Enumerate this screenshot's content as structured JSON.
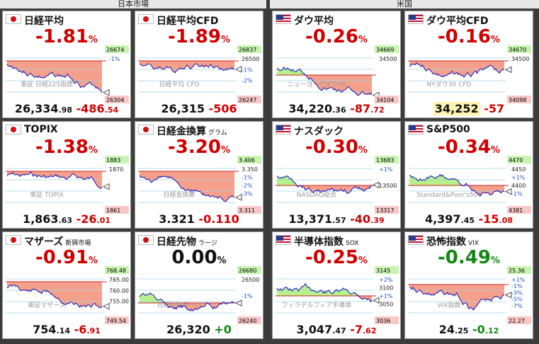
{
  "sections": {
    "japan": "日本市場",
    "us": "米国"
  },
  "panels": [
    {
      "id": "nikkei",
      "flag": "jp",
      "name": "日経平均",
      "sub": "",
      "pct": "-1.81",
      "pct_unit": "%",
      "dir": "neg",
      "price_main": "26,334",
      "price_dec": ".98",
      "chg_main": "-486",
      "chg_dec": ".54",
      "highlight": false,
      "axis": {
        "high": "26674",
        "low": "26304",
        "pct_ticks": [
          "-1%"
        ]
      },
      "watermark": "東証 日経225指標",
      "fill": "red",
      "flat": false
    },
    {
      "id": "nikkei_cfd",
      "flag": "jp",
      "name": "日経平均CFD",
      "sub": "",
      "pct": "-1.89",
      "pct_unit": "%",
      "dir": "neg",
      "price_main": "26,315",
      "price_dec": "",
      "chg_main": "-506",
      "chg_dec": "",
      "highlight": false,
      "axis": {
        "high": "26837",
        "low": "26247",
        "pct_ticks": [
          "26500",
          "-1%",
          "-2%"
        ]
      },
      "watermark": "日経平均 CFD",
      "fill": "red",
      "flat": false
    },
    {
      "id": "dow",
      "flag": "us",
      "name": "ダウ平均",
      "sub": "",
      "pct": "-0.26",
      "pct_unit": "%",
      "dir": "neg",
      "price_main": "34,220",
      "price_dec": ".36",
      "chg_main": "-87",
      "chg_dec": ".72",
      "highlight": false,
      "axis": {
        "high": "34669",
        "low": "34104",
        "pct_ticks": [
          "34500"
        ]
      },
      "watermark": "ニューヨークダウ30",
      "fill": "green-red",
      "flat": false
    },
    {
      "id": "dow_cfd",
      "flag": "us",
      "name": "ダウ平均CFD",
      "sub": "",
      "pct": "-0.16",
      "pct_unit": "%",
      "dir": "neg",
      "price_main": "34,252",
      "price_dec": "",
      "chg_main": "-57",
      "chg_dec": "",
      "highlight": true,
      "axis": {
        "high": "34670",
        "low": "34098",
        "pct_ticks": [
          "34500"
        ]
      },
      "watermark": "NYダウ30 CFD",
      "fill": "red",
      "flat": false
    },
    {
      "id": "topix",
      "flag": "jp",
      "name": "TOPIX",
      "sub": "",
      "pct": "-1.38",
      "pct_unit": "%",
      "dir": "neg",
      "price_main": "1,863",
      "price_dec": ".63",
      "chg_main": "-26",
      "chg_dec": ".01",
      "highlight": false,
      "axis": {
        "high": "1883",
        "low": "1861",
        "pct_ticks": [
          "1870"
        ]
      },
      "watermark": "東証 TOPIX",
      "fill": "red",
      "flat": false
    },
    {
      "id": "gold",
      "flag": "jp",
      "name": "日経金換算",
      "sub": "グラム",
      "pct": "-3.20",
      "pct_unit": "%",
      "dir": "neg",
      "price_main": "3.321",
      "price_dec": "",
      "chg_main": "-0.110",
      "chg_dec": "",
      "highlight": false,
      "axis": {
        "high": "3.406",
        "low": "3.311",
        "pct_ticks": [
          "3.350",
          "-1%",
          "-2%",
          "-3%"
        ]
      },
      "watermark": "日経金換算",
      "fill": "red",
      "flat": false
    },
    {
      "id": "nasdaq",
      "flag": "us",
      "name": "ナスダック",
      "sub": "",
      "pct": "-0.30",
      "pct_unit": "%",
      "dir": "neg",
      "price_main": "13,371",
      "price_dec": ".57",
      "chg_main": "-40",
      "chg_dec": ".39",
      "highlight": false,
      "axis": {
        "high": "13683",
        "low": "13317",
        "pct_ticks": [
          "+1%",
          "13500"
        ]
      },
      "watermark": "NASDAQ総合",
      "fill": "green-red",
      "flat": false
    },
    {
      "id": "sp500",
      "flag": "us",
      "name": "S&P500",
      "sub": "",
      "pct": "-0.34",
      "pct_unit": "%",
      "dir": "neg",
      "price_main": "4,397",
      "price_dec": ".45",
      "chg_main": "-15",
      "chg_dec": ".08",
      "highlight": false,
      "axis": {
        "high": "4470",
        "low": "4381",
        "pct_ticks": [
          "4450",
          "+1%",
          "4400",
          "-1%"
        ]
      },
      "watermark": "Standard&Poor's500",
      "fill": "green-red",
      "flat": false
    },
    {
      "id": "mothers",
      "flag": "jp",
      "name": "マザーズ",
      "sub": "新興市場",
      "pct": "-0.91",
      "pct_unit": "%",
      "dir": "neg",
      "price_main": "754",
      "price_dec": ".14",
      "chg_main": "-6",
      "chg_dec": ".91",
      "highlight": false,
      "axis": {
        "high": "768.48",
        "low": "749.54",
        "pct_ticks": [
          "765.00",
          "760.00",
          "755.00"
        ]
      },
      "watermark": "東証マザーズ",
      "fill": "red",
      "flat": false
    },
    {
      "id": "nikkei_fut",
      "flag": "jp",
      "name": "日経先物",
      "sub": "ラージ",
      "pct": "0.00",
      "pct_unit": "%",
      "dir": "neu",
      "price_main": "26,320",
      "price_dec": "",
      "chg_main": "+0",
      "chg_dec": "",
      "highlight": false,
      "axis": {
        "high": "26680",
        "low": "26240",
        "pct_ticks": [
          "26500",
          "-1%"
        ]
      },
      "watermark": "日経先物ラージ",
      "fill": "green",
      "flat": true
    },
    {
      "id": "sox",
      "flag": "us",
      "name": "半導体指数",
      "sub": "SOX",
      "pct": "-0.25",
      "pct_unit": "%",
      "dir": "neg",
      "price_main": "3,047",
      "price_dec": ".47",
      "chg_main": "-7",
      "chg_dec": ".62",
      "highlight": false,
      "axis": {
        "high": "3145",
        "low": "3036",
        "pct_ticks": [
          "+2%",
          "3100",
          "+1%",
          "3050"
        ]
      },
      "watermark": "フィラデルフィア半導体",
      "fill": "green-red",
      "flat": false
    },
    {
      "id": "vix",
      "flag": "us",
      "name": "恐怖指数",
      "sub": "VIX",
      "pct": "-0.49",
      "pct_unit": "%",
      "dir": "pos",
      "price_main": "24",
      "price_dec": ".25",
      "chg_main": "-0",
      "chg_dec": ".12",
      "highlight": false,
      "axis": {
        "high": "25.36",
        "low": "22.27",
        "pct_ticks": [
          "+1%",
          "-1%",
          "-3%",
          "-5%",
          "-7%"
        ]
      },
      "watermark": "VIX指数",
      "fill": "green-red",
      "flat": false
    }
  ]
}
